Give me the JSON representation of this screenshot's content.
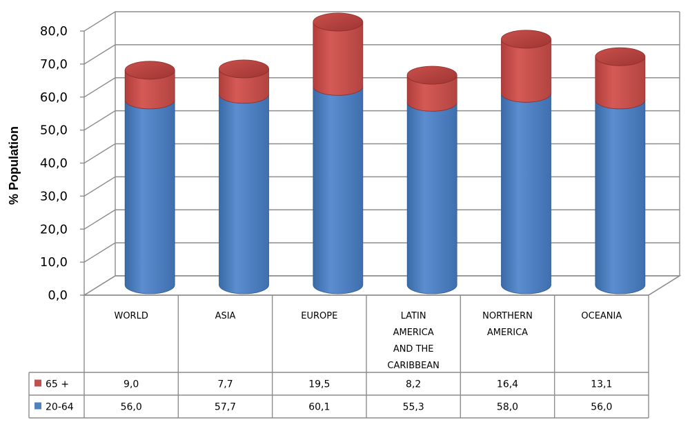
{
  "chart_data": {
    "type": "bar",
    "ylabel": "% Population",
    "ylim": [
      0,
      80
    ],
    "y_ticks": [
      "0,0",
      "10,0",
      "20,0",
      "30,0",
      "40,0",
      "50,0",
      "60,0",
      "70,0",
      "80,0"
    ],
    "categories": [
      [
        "WORLD"
      ],
      [
        "ASIA"
      ],
      [
        "EUROPE"
      ],
      [
        "LATIN",
        "AMERICA",
        "AND THE",
        "CARIBBEAN"
      ],
      [
        "NORTHERN",
        "AMERICA"
      ],
      [
        "OCEANIA"
      ]
    ],
    "series": [
      {
        "name": "20-64",
        "values": [
          56.0,
          57.7,
          60.1,
          55.3,
          58.0,
          56.0
        ],
        "labels": [
          "56,0",
          "57,7",
          "60,1",
          "55,3",
          "58,0",
          "56,0"
        ],
        "color": "#4f81bd"
      },
      {
        "name": "65 +",
        "values": [
          9.0,
          7.7,
          19.5,
          8.2,
          16.4,
          13.1
        ],
        "labels": [
          "9,0",
          "7,7",
          "19,5",
          "8,2",
          "16,4",
          "13,1"
        ],
        "color": "#c0504d"
      }
    ],
    "stacked": true,
    "grid": true,
    "legend": "data-table"
  }
}
